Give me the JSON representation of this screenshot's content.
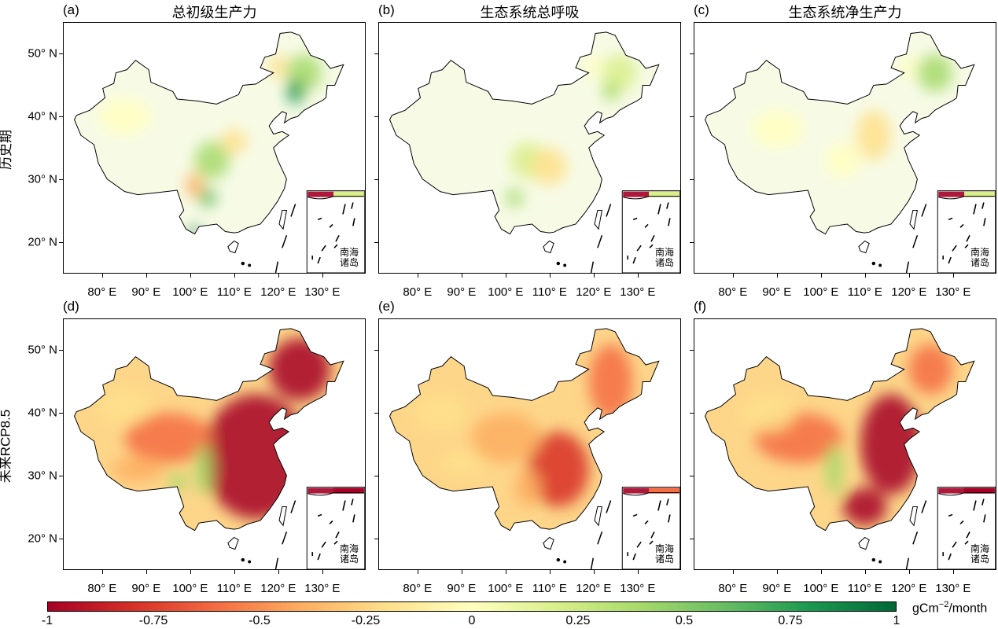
{
  "row_labels": [
    "历史期",
    "未来RCP8.5"
  ],
  "panels": [
    {
      "letter": "(a)",
      "title": "总初级生产力"
    },
    {
      "letter": "(b)",
      "title": "生态系统总呼吸"
    },
    {
      "letter": "(c)",
      "title": "生态系统净生产力"
    },
    {
      "letter": "(d)",
      "title": ""
    },
    {
      "letter": "(e)",
      "title": ""
    },
    {
      "letter": "(f)",
      "title": ""
    }
  ],
  "lon_ticks": [
    "80° E",
    "90° E",
    "100° E",
    "110° E",
    "120° E",
    "130° E"
  ],
  "lat_ticks": [
    "50° N",
    "40° N",
    "30° N",
    "20° N"
  ],
  "inset_label": [
    "南海",
    "诸岛"
  ],
  "colorbar": {
    "ticks": [
      "-1",
      "-0.75",
      "-0.5",
      "-0.25",
      "0",
      "0.25",
      "0.5",
      "0.75",
      "1"
    ],
    "unit_base": "gCm",
    "unit_sup": "−2",
    "unit_tail": "/month",
    "colormap": [
      "#a50026",
      "#d73027",
      "#f46d43",
      "#fdae61",
      "#fee08b",
      "#ffffbf",
      "#d9ef8b",
      "#a6d96a",
      "#66bd63",
      "#1a9850",
      "#006837"
    ]
  }
}
